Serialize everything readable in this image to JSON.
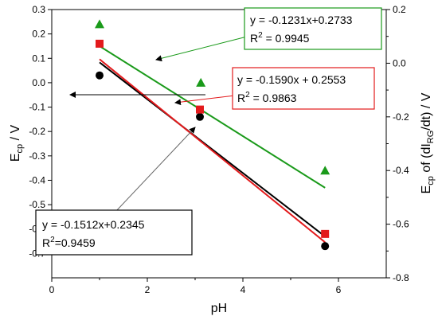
{
  "chart_data": {
    "type": "scatter",
    "xlabel": "pH",
    "ylabel_left": {
      "main": "E",
      "sub": "cp",
      "rest": " / V"
    },
    "ylabel_right": {
      "p1": "E",
      "s1": "cp",
      "p2": " of (dI",
      "s2": "RG",
      "p3": "/dt) / V"
    },
    "xlim": [
      0,
      7
    ],
    "ylim_left": [
      -0.8,
      0.3
    ],
    "ylim_right": [
      -0.8,
      0.2
    ],
    "x_ticks": [
      0,
      2,
      4,
      6
    ],
    "y_ticks_left": [
      0.3,
      0.2,
      0.1,
      0.0,
      -0.1,
      -0.2,
      -0.3,
      -0.4,
      -0.5,
      -0.6,
      -0.7
    ],
    "y_tick_labels_left": [
      "0.3",
      "0.2",
      "0.1",
      "0.0",
      "-0.1",
      "-0.2",
      "-0.3",
      "-0.4",
      "-0.5",
      "-0.6",
      "-0.7"
    ],
    "y_ticks_right": [
      0.2,
      0.0,
      -0.2,
      -0.4,
      -0.6,
      -0.8
    ],
    "y_tick_labels_right": [
      "0.2",
      "0.0",
      "-0.2",
      "-0.4",
      "-0.6",
      "-0.8"
    ],
    "grid": false,
    "colors": {
      "black": "#000000",
      "red": "#e31a1c",
      "green": "#1a9a1a"
    },
    "series": [
      {
        "marker": "circle",
        "axis": "left",
        "color": "#000000",
        "x": [
          1.0,
          3.1,
          5.72
        ],
        "y": [
          0.03,
          -0.14,
          -0.67
        ],
        "fit": {
          "slope": -0.1512,
          "intercept": 0.2345,
          "x": [
            1.0,
            5.72
          ]
        }
      },
      {
        "marker": "square",
        "axis": "left",
        "color": "#e31a1c",
        "x": [
          1.0,
          3.1,
          5.72
        ],
        "y": [
          0.16,
          -0.11,
          -0.62
        ],
        "fit": {
          "slope": -0.159,
          "intercept": 0.2553,
          "x": [
            1.0,
            5.72
          ]
        }
      },
      {
        "marker": "triangle",
        "axis": "left",
        "color": "#1a9a1a",
        "x": [
          1.0,
          3.12,
          5.72
        ],
        "y": [
          0.24,
          0.0,
          -0.36
        ],
        "fit": {
          "slope": -0.1231,
          "intercept": 0.2733,
          "x": [
            1.0,
            5.72
          ]
        }
      }
    ],
    "annotations": [
      {
        "id": "green",
        "border": "#1a9a1a",
        "eq": "y = -0.1231x+0.2733",
        "r2_label": "R",
        "r2_exp": "2",
        "r2_value": " = 0.9945"
      },
      {
        "id": "red",
        "border": "#e31a1c",
        "eq": "y = -0.1590x + 0.2553",
        "r2_label": "R",
        "r2_exp": "2",
        "r2_value": " = 0.9863"
      },
      {
        "id": "black",
        "border": "#000000",
        "eq": "y = -0.1512x+0.2345",
        "r2_label": "R",
        "r2_exp": "2",
        "r2_value": "=0.9459"
      }
    ]
  }
}
